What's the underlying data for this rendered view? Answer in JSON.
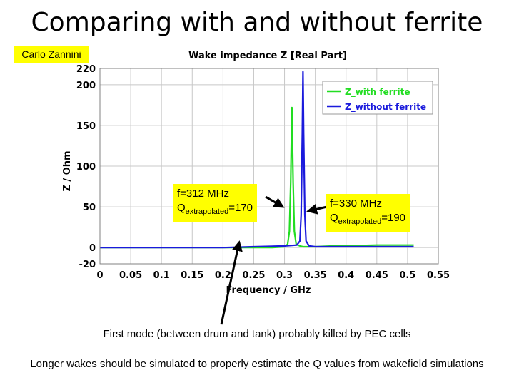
{
  "slide": {
    "title": "Comparing with and without ferrite",
    "author": "Carlo Zannini",
    "note1": "First mode (between drum and tank) probably killed by PEC cells",
    "note2": "Longer wakes should be simulated to properly estimate the Q values from wakefield simulations"
  },
  "callouts": {
    "left": {
      "freq": "f=312 MHz",
      "q_prefix": "Q",
      "q_sub": "extrapolated",
      "q_value": "=170"
    },
    "right": {
      "freq": "f=330 MHz",
      "q_prefix": "Q",
      "q_sub": "extrapolated",
      "q_value": "=190"
    }
  },
  "chart_data": {
    "type": "line",
    "title": "Wake impedance Z [Real Part]",
    "xlabel": "Frequency / GHz",
    "ylabel": "Z / Ohm",
    "xlim": [
      0,
      0.55
    ],
    "ylim": [
      -20,
      220
    ],
    "xticks": [
      "0",
      "0.05",
      "0.1",
      "0.15",
      "0.2",
      "0.25",
      "0.3",
      "0.35",
      "0.4",
      "0.45",
      "0.5",
      "0.55"
    ],
    "yticks": [
      "220",
      "200",
      "150",
      "100",
      "50",
      "0",
      "-20"
    ],
    "grid": true,
    "legend_position": "top-right",
    "series": [
      {
        "name": "Z_with ferrite",
        "color": "#22dd22",
        "x": [
          0,
          0.1,
          0.2,
          0.28,
          0.3,
          0.305,
          0.308,
          0.31,
          0.312,
          0.314,
          0.316,
          0.319,
          0.325,
          0.33,
          0.35,
          0.38,
          0.4,
          0.45,
          0.5,
          0.51
        ],
        "y": [
          0,
          0,
          0,
          0,
          1,
          4,
          20,
          80,
          172,
          80,
          20,
          4,
          2,
          1,
          1,
          2,
          2,
          3,
          3,
          3
        ]
      },
      {
        "name": "Z_without ferrite",
        "color": "#1a1adc",
        "x": [
          0,
          0.1,
          0.2,
          0.25,
          0.3,
          0.32,
          0.325,
          0.327,
          0.329,
          0.33,
          0.331,
          0.333,
          0.335,
          0.34,
          0.35,
          0.4,
          0.45,
          0.5,
          0.51
        ],
        "y": [
          0,
          0,
          0,
          1,
          2,
          3,
          8,
          40,
          140,
          216,
          140,
          40,
          8,
          2,
          1,
          1,
          1,
          1,
          1
        ]
      }
    ]
  }
}
